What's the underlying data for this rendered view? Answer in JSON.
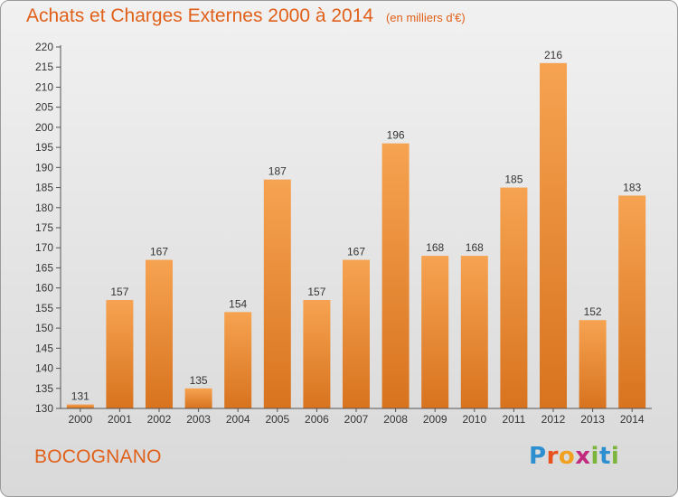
{
  "title": "Achats et Charges Externes 2000 à 2014",
  "unit": "(en milliers d'€)",
  "commune": "BOCOGNANO",
  "logo": {
    "letters": [
      "P",
      "r",
      "o",
      "x",
      "i",
      "t",
      "i"
    ]
  },
  "colors": {
    "bar_top": "#f6a351",
    "bar_bottom": "#d8731f",
    "title": "#e0601a"
  },
  "chart_data": {
    "type": "bar",
    "categories": [
      "2000",
      "2001",
      "2002",
      "2003",
      "2004",
      "2005",
      "2006",
      "2007",
      "2008",
      "2009",
      "2010",
      "2011",
      "2012",
      "2013",
      "2014"
    ],
    "values": [
      131,
      157,
      167,
      135,
      154,
      187,
      157,
      167,
      196,
      168,
      168,
      185,
      216,
      152,
      183
    ],
    "ylim": [
      130,
      220
    ],
    "yticks": [
      130,
      135,
      140,
      145,
      150,
      155,
      160,
      165,
      170,
      175,
      180,
      185,
      190,
      195,
      200,
      205,
      210,
      215,
      220
    ],
    "grid": false,
    "data_labels": true
  }
}
